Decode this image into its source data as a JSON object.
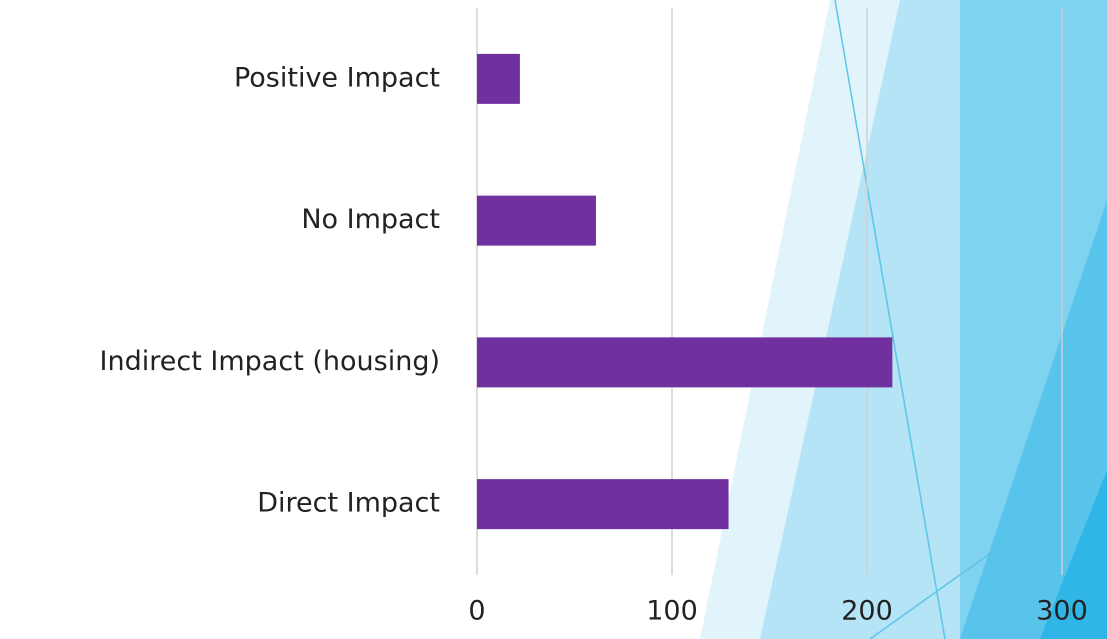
{
  "chart_data": {
    "type": "bar",
    "orientation": "horizontal",
    "categories": [
      "Direct Impact",
      "Indirect Impact (housing)",
      "No Impact",
      "Positive Impact"
    ],
    "values": [
      129,
      213,
      61,
      22
    ],
    "color": "#7030a0",
    "xlim": [
      0,
      300
    ],
    "xticks": [
      0,
      100,
      200,
      300
    ],
    "grid": true
  }
}
